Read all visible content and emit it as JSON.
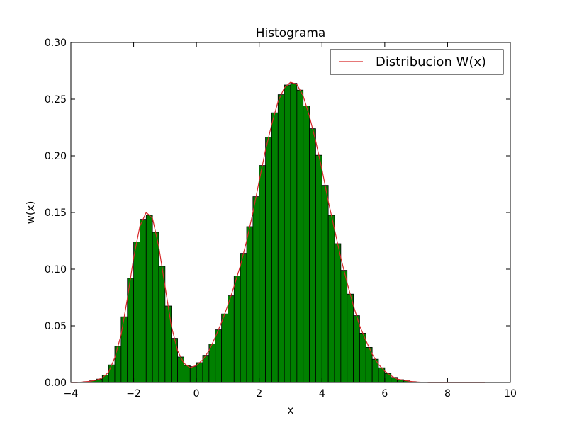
{
  "chart_data": {
    "type": "bar",
    "title": "Histograma",
    "xlabel": "x",
    "ylabel": "w(x)",
    "xlim": [
      -4,
      10
    ],
    "ylim": [
      0,
      0.3
    ],
    "x_ticks": [
      "−4",
      "−2",
      "0",
      "2",
      "4",
      "6",
      "8",
      "10"
    ],
    "x_tick_values": [
      -4,
      -2,
      0,
      2,
      4,
      6,
      8,
      10
    ],
    "y_ticks": [
      "0.00",
      "0.05",
      "0.10",
      "0.15",
      "0.20",
      "0.25",
      "0.30"
    ],
    "y_tick_values": [
      0,
      0.05,
      0.1,
      0.15,
      0.2,
      0.25,
      0.3
    ],
    "grid": false,
    "legend_position": "top-right",
    "series": [
      {
        "name": "Distribucion W(x)",
        "kind": "line",
        "color": "#d62728",
        "x": [
          -4.0,
          -3.8,
          -3.6,
          -3.4,
          -3.2,
          -3.0,
          -2.8,
          -2.6,
          -2.4,
          -2.2,
          -2.0,
          -1.8,
          -1.6,
          -1.4,
          -1.2,
          -1.0,
          -0.8,
          -0.6,
          -0.4,
          -0.2,
          0.0,
          0.2,
          0.4,
          0.6,
          0.8,
          1.0,
          1.2,
          1.4,
          1.6,
          1.8,
          2.0,
          2.2,
          2.4,
          2.6,
          2.8,
          3.0,
          3.2,
          3.4,
          3.6,
          3.8,
          4.0,
          4.2,
          4.4,
          4.6,
          4.8,
          5.0,
          5.2,
          5.4,
          5.6,
          5.8,
          6.0,
          6.2,
          6.4,
          6.6,
          6.8,
          7.0,
          7.2,
          7.4,
          7.6,
          7.8,
          8.0,
          8.2,
          8.4,
          8.6,
          8.8,
          9.0,
          9.2
        ],
        "values": [
          0.0,
          0.0,
          0.0005,
          0.001,
          0.002,
          0.004,
          0.009,
          0.022,
          0.042,
          0.074,
          0.11,
          0.138,
          0.15,
          0.145,
          0.12,
          0.085,
          0.05,
          0.028,
          0.017,
          0.013,
          0.015,
          0.02,
          0.028,
          0.04,
          0.053,
          0.068,
          0.085,
          0.103,
          0.125,
          0.15,
          0.178,
          0.205,
          0.228,
          0.248,
          0.26,
          0.265,
          0.263,
          0.253,
          0.235,
          0.213,
          0.188,
          0.16,
          0.135,
          0.11,
          0.088,
          0.068,
          0.05,
          0.037,
          0.025,
          0.016,
          0.01,
          0.006,
          0.003,
          0.002,
          0.001,
          0.0005,
          0.0002,
          0.0,
          0.0,
          0.0,
          0.0,
          0.0,
          0.0,
          0.0,
          0.0,
          0.0,
          0.0
        ]
      },
      {
        "name": "",
        "kind": "histogram",
        "color": "#008000",
        "bin_width": 0.2
      }
    ]
  }
}
